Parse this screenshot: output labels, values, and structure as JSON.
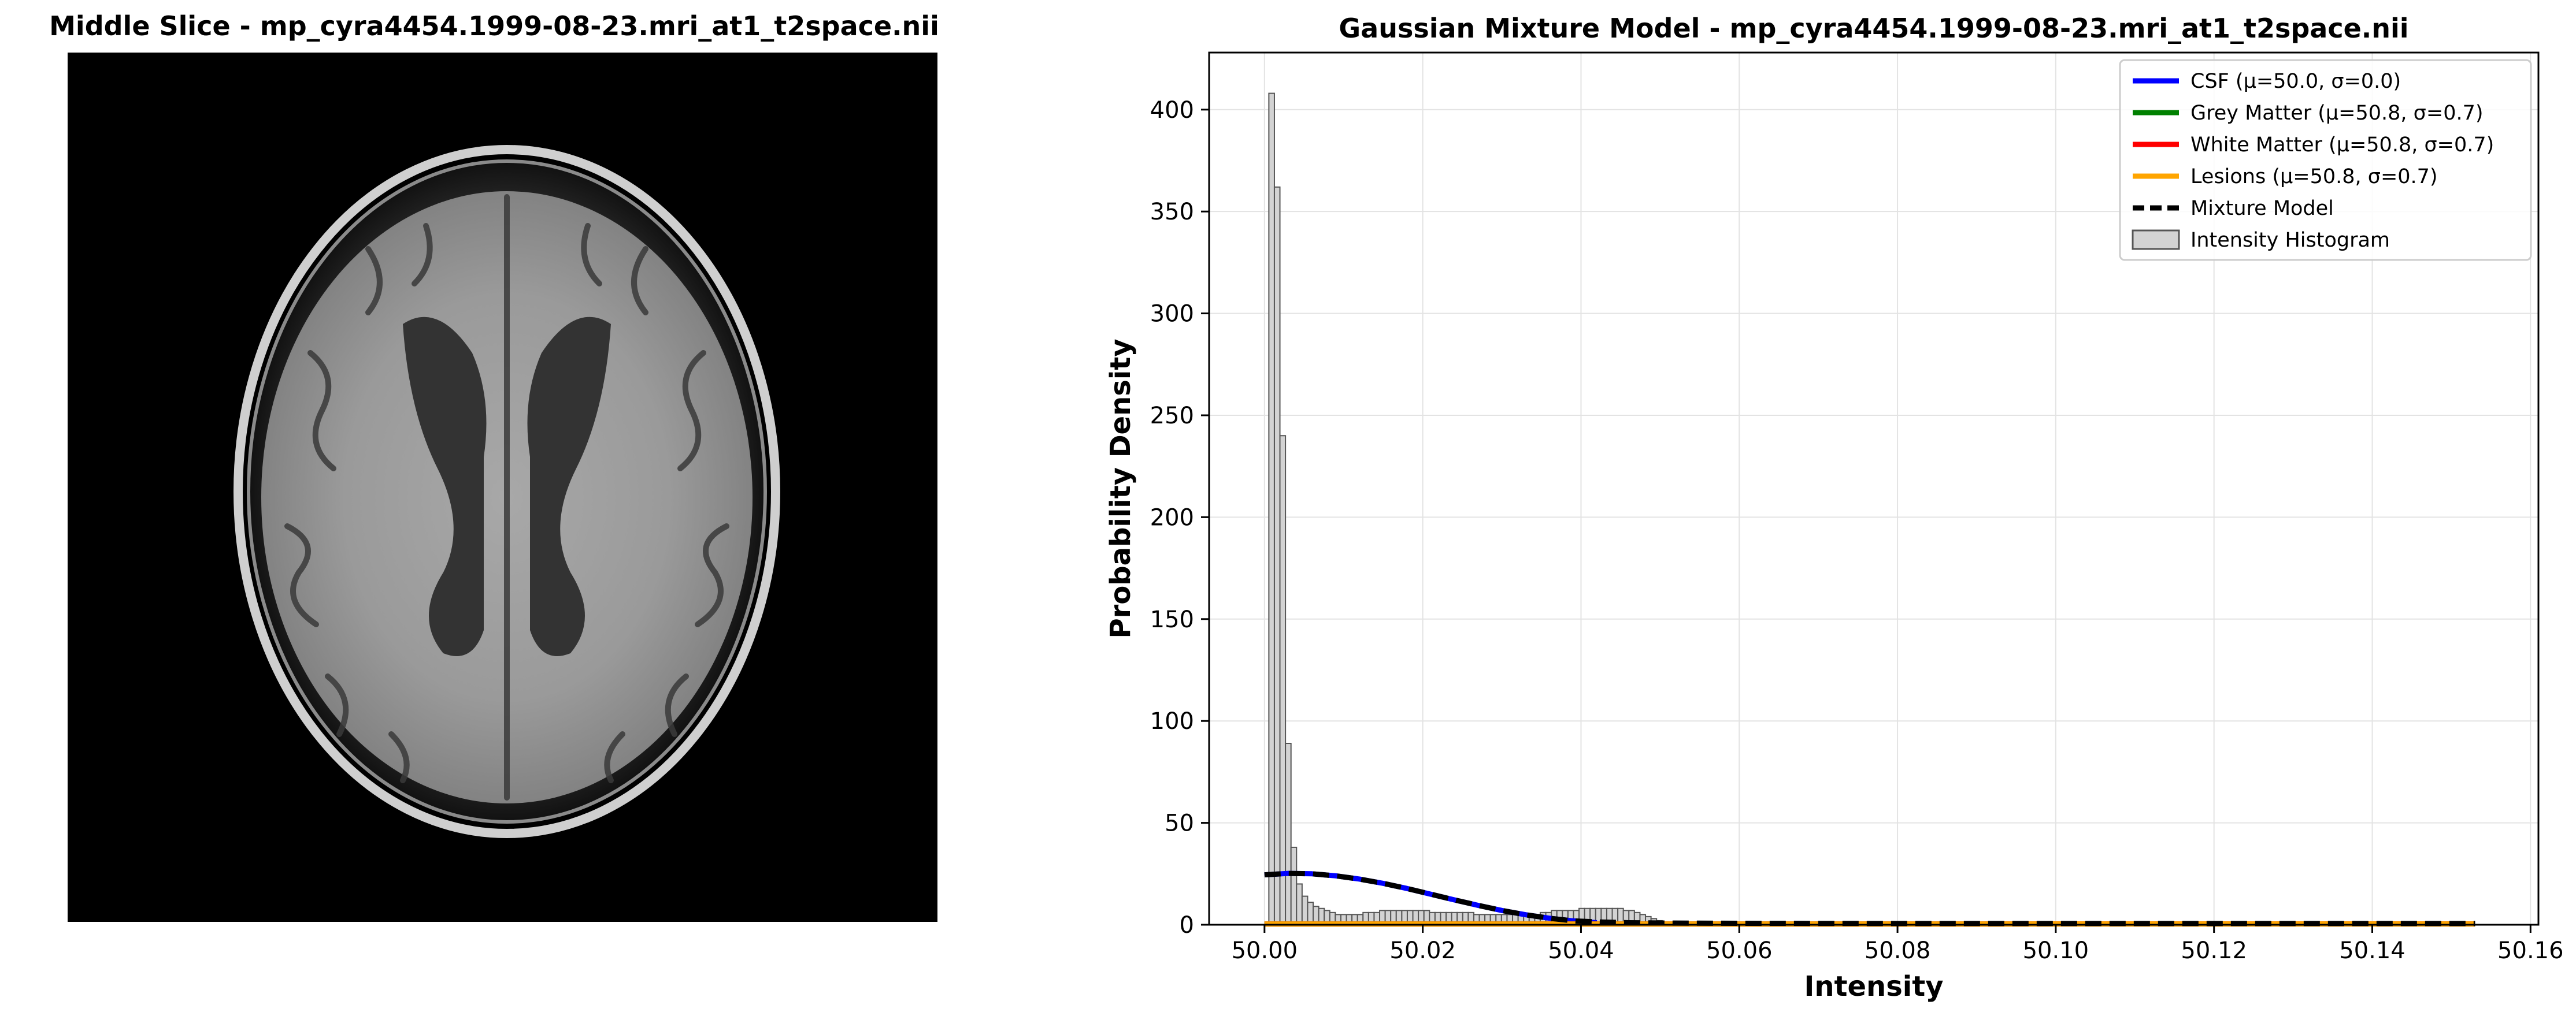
{
  "left_panel": {
    "title": "Middle Slice - mp_cyra4454.1999-08-23.mri_at1_t2space.nii"
  },
  "chart_data": {
    "type": "histogram",
    "title": "Gaussian Mixture Model - mp_cyra4454.1999-08-23.mri_at1_t2space.nii",
    "xlabel": "Intensity",
    "ylabel": "Probability Density",
    "xlim": [
      49.993,
      50.161
    ],
    "ylim": [
      0,
      428
    ],
    "xticks": [
      "50.00",
      "50.02",
      "50.04",
      "50.06",
      "50.08",
      "50.10",
      "50.12",
      "50.14",
      "50.16"
    ],
    "yticks": [
      "0",
      "50",
      "100",
      "150",
      "200",
      "250",
      "300",
      "350",
      "400"
    ],
    "grid": true,
    "legend_position": "top-right",
    "histogram": {
      "name": "Intensity Histogram",
      "color": "#d3d3d3",
      "edgecolor": "#555555",
      "bins": [
        {
          "x": 50.0009,
          "y": 408
        },
        {
          "x": 50.0016,
          "y": 362
        },
        {
          "x": 50.0023,
          "y": 240
        },
        {
          "x": 50.003,
          "y": 89
        },
        {
          "x": 50.0037,
          "y": 38
        },
        {
          "x": 50.0044,
          "y": 20
        },
        {
          "x": 50.0051,
          "y": 14
        },
        {
          "x": 50.0058,
          "y": 11
        },
        {
          "x": 50.0065,
          "y": 9
        },
        {
          "x": 50.0072,
          "y": 8
        },
        {
          "x": 50.0079,
          "y": 7
        },
        {
          "x": 50.0086,
          "y": 6
        },
        {
          "x": 50.0093,
          "y": 5
        },
        {
          "x": 50.01,
          "y": 5
        },
        {
          "x": 50.0107,
          "y": 5
        },
        {
          "x": 50.0114,
          "y": 5
        },
        {
          "x": 50.0121,
          "y": 5
        },
        {
          "x": 50.0128,
          "y": 6
        },
        {
          "x": 50.0135,
          "y": 6
        },
        {
          "x": 50.0142,
          "y": 6
        },
        {
          "x": 50.0149,
          "y": 7
        },
        {
          "x": 50.0156,
          "y": 7
        },
        {
          "x": 50.0163,
          "y": 7
        },
        {
          "x": 50.017,
          "y": 7
        },
        {
          "x": 50.0177,
          "y": 7
        },
        {
          "x": 50.0184,
          "y": 7
        },
        {
          "x": 50.0191,
          "y": 7
        },
        {
          "x": 50.0198,
          "y": 7
        },
        {
          "x": 50.0205,
          "y": 7
        },
        {
          "x": 50.0212,
          "y": 6
        },
        {
          "x": 50.0219,
          "y": 6
        },
        {
          "x": 50.0226,
          "y": 6
        },
        {
          "x": 50.0233,
          "y": 6
        },
        {
          "x": 50.024,
          "y": 6
        },
        {
          "x": 50.0247,
          "y": 6
        },
        {
          "x": 50.0254,
          "y": 6
        },
        {
          "x": 50.0261,
          "y": 6
        },
        {
          "x": 50.0268,
          "y": 5
        },
        {
          "x": 50.0275,
          "y": 5
        },
        {
          "x": 50.0282,
          "y": 5
        },
        {
          "x": 50.0289,
          "y": 5
        },
        {
          "x": 50.0296,
          "y": 5
        },
        {
          "x": 50.0303,
          "y": 5
        },
        {
          "x": 50.031,
          "y": 5
        },
        {
          "x": 50.0317,
          "y": 5
        },
        {
          "x": 50.0324,
          "y": 5
        },
        {
          "x": 50.0331,
          "y": 5
        },
        {
          "x": 50.0338,
          "y": 5
        },
        {
          "x": 50.0345,
          "y": 5
        },
        {
          "x": 50.0352,
          "y": 6
        },
        {
          "x": 50.0359,
          "y": 6
        },
        {
          "x": 50.0366,
          "y": 7
        },
        {
          "x": 50.0373,
          "y": 7
        },
        {
          "x": 50.038,
          "y": 7
        },
        {
          "x": 50.0387,
          "y": 7
        },
        {
          "x": 50.0394,
          "y": 7
        },
        {
          "x": 50.0401,
          "y": 8
        },
        {
          "x": 50.0408,
          "y": 8
        },
        {
          "x": 50.0415,
          "y": 8
        },
        {
          "x": 50.0422,
          "y": 8
        },
        {
          "x": 50.0429,
          "y": 8
        },
        {
          "x": 50.0436,
          "y": 8
        },
        {
          "x": 50.0443,
          "y": 8
        },
        {
          "x": 50.045,
          "y": 8
        },
        {
          "x": 50.0457,
          "y": 7
        },
        {
          "x": 50.0464,
          "y": 7
        },
        {
          "x": 50.0471,
          "y": 6
        },
        {
          "x": 50.0478,
          "y": 5
        },
        {
          "x": 50.0485,
          "y": 4
        },
        {
          "x": 50.0492,
          "y": 3
        },
        {
          "x": 50.0499,
          "y": 2
        },
        {
          "x": 50.0506,
          "y": 1
        },
        {
          "x": 50.0513,
          "y": 0.5
        }
      ],
      "bin_width": 0.0007
    },
    "series": [
      {
        "name": "CSF (μ=50.0, σ=0.0)",
        "color": "#0000ff",
        "style": "solid",
        "x": [
          50.0,
          50.003,
          50.006,
          50.009,
          50.012,
          50.015,
          50.018,
          50.021,
          50.024,
          50.027,
          50.03,
          50.033,
          50.036,
          50.039,
          50.042
        ],
        "y": [
          24.5,
          25.2,
          25.0,
          24.0,
          22.4,
          20.3,
          17.8,
          15.0,
          12.2,
          9.5,
          7.0,
          4.9,
          3.2,
          1.9,
          1.0
        ]
      },
      {
        "name": "Grey Matter (μ=50.8, σ=0.7)",
        "color": "#008000",
        "style": "solid",
        "x": [
          50.0,
          50.153
        ],
        "y": [
          0.34,
          0.39
        ]
      },
      {
        "name": "White Matter (μ=50.8, σ=0.7)",
        "color": "#ff0000",
        "style": "solid",
        "x": [
          50.0,
          50.153
        ],
        "y": [
          0.34,
          0.39
        ]
      },
      {
        "name": "Lesions (μ=50.8, σ=0.7)",
        "color": "#ffa500",
        "style": "solid",
        "x": [
          50.0,
          50.153
        ],
        "y": [
          0.34,
          0.39
        ]
      },
      {
        "name": "Mixture Model",
        "color": "#000000",
        "style": "dashed",
        "x": [
          50.0,
          50.003,
          50.006,
          50.009,
          50.012,
          50.015,
          50.018,
          50.021,
          50.024,
          50.027,
          50.03,
          50.033,
          50.036,
          50.039,
          50.042,
          50.046,
          50.052,
          50.06,
          50.08,
          50.1,
          50.12,
          50.14,
          50.153
        ],
        "y": [
          24.5,
          25.2,
          25.0,
          24.0,
          22.4,
          20.3,
          17.8,
          15.0,
          12.2,
          9.5,
          7.0,
          4.9,
          3.2,
          1.9,
          1.4,
          1.0,
          0.8,
          0.7,
          0.6,
          0.6,
          0.6,
          0.6,
          0.6
        ]
      }
    ]
  }
}
